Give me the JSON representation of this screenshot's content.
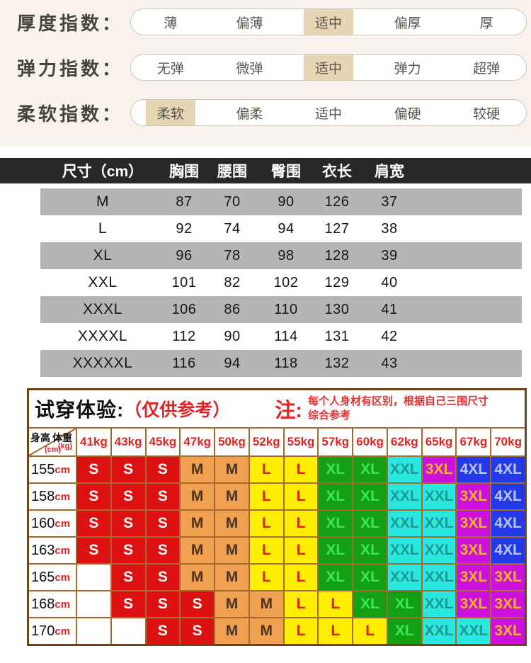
{
  "page_bg": "#f8f1ec",
  "indices": {
    "highlight_color": "#e5d5b2",
    "rows": [
      {
        "label": "厚度指数：",
        "options": [
          "薄",
          "偏薄",
          "适中",
          "偏厚",
          "厚"
        ],
        "selected": 2,
        "selected_label": "适中"
      },
      {
        "label": "弹力指数：",
        "options": [
          "无弹",
          "微弹",
          "适中",
          "弹力",
          "超弹"
        ],
        "selected": 2,
        "selected_label": "适中"
      },
      {
        "label": "柔软指数：",
        "options": [
          "柔软",
          "偏柔",
          "适中",
          "偏硬",
          "较硬"
        ],
        "selected": 0,
        "selected_label": "柔软"
      }
    ]
  },
  "size_table": {
    "header_bg": "#282828",
    "row_alt_bg": "#b5b5b5",
    "headers": [
      "尺寸（cm）",
      "胸围",
      "腰围",
      "臀围",
      "衣长",
      "肩宽"
    ],
    "rows": [
      {
        "size": "M",
        "values": [
          "87",
          "70",
          "90",
          "126",
          "37"
        ]
      },
      {
        "size": "L",
        "values": [
          "92",
          "74",
          "94",
          "127",
          "38"
        ]
      },
      {
        "size": "XL",
        "values": [
          "96",
          "78",
          "98",
          "128",
          "39"
        ]
      },
      {
        "size": "XXL",
        "values": [
          "101",
          "82",
          "102",
          "129",
          "40"
        ]
      },
      {
        "size": "XXXL",
        "values": [
          "106",
          "86",
          "110",
          "130",
          "41"
        ]
      },
      {
        "size": "XXXXL",
        "values": [
          "112",
          "90",
          "114",
          "131",
          "42"
        ]
      },
      {
        "size": "XXXXXL",
        "values": [
          "116",
          "94",
          "118",
          "132",
          "43"
        ]
      }
    ]
  },
  "fit_table": {
    "title": "试穿体验:",
    "title_sub": "（仅供参考）",
    "note_label": "注:",
    "note_line1": "每个人身材有区别，根据自己三围尺寸",
    "note_line2": "综合参考",
    "corner_top": "体重",
    "corner_top_unit": "(kg)",
    "corner_bottom": "身高",
    "corner_bottom_unit": "(cm)",
    "border_color": "#a8692c",
    "weights": [
      "41kg",
      "43kg",
      "45kg",
      "47kg",
      "50kg",
      "52kg",
      "55kg",
      "57kg",
      "60kg",
      "62kg",
      "65kg",
      "67kg",
      "70kg"
    ],
    "rows": [
      {
        "height": "155",
        "unit": "cm",
        "cells": [
          "S",
          "S",
          "S",
          "M",
          "M",
          "L",
          "L",
          "XL",
          "XL",
          "XXL",
          "3XL",
          "4XL",
          "4XL"
        ]
      },
      {
        "height": "158",
        "unit": "cm",
        "cells": [
          "S",
          "S",
          "S",
          "M",
          "M",
          "L",
          "L",
          "XL",
          "XL",
          "XXL",
          "XXL",
          "3XL",
          "4XL"
        ]
      },
      {
        "height": "160",
        "unit": "cm",
        "cells": [
          "S",
          "S",
          "S",
          "M",
          "M",
          "L",
          "L",
          "XL",
          "XL",
          "XXL",
          "XXL",
          "3XL",
          "4XL"
        ]
      },
      {
        "height": "163",
        "unit": "cm",
        "cells": [
          "S",
          "S",
          "S",
          "M",
          "M",
          "L",
          "L",
          "XL",
          "XL",
          "XXL",
          "XXL",
          "3XL",
          "4XL"
        ]
      },
      {
        "height": "165",
        "unit": "cm",
        "cells": [
          "",
          "S",
          "S",
          "M",
          "M",
          "L",
          "L",
          "XL",
          "XL",
          "XXL",
          "XXL",
          "3XL",
          "3XL"
        ]
      },
      {
        "height": "168",
        "unit": "cm",
        "cells": [
          "",
          "S",
          "S",
          "S",
          "M",
          "M",
          "L",
          "L",
          "XL",
          "XL",
          "XXL",
          "3XL",
          "3XL"
        ]
      },
      {
        "height": "170",
        "unit": "cm",
        "cells": [
          "",
          "",
          "S",
          "S",
          "M",
          "M",
          "L",
          "L",
          "L",
          "XL",
          "XXL",
          "XXL",
          "3XL"
        ]
      }
    ],
    "cell_styles": {
      "S": {
        "bg": "#dd1111",
        "fg": "#ffffff"
      },
      "M": {
        "bg": "#f0a050",
        "fg": "#4a3420"
      },
      "L": {
        "bg": "#ffee00",
        "fg": "#dd2200"
      },
      "XL": {
        "bg": "#14a014",
        "fg": "#3ce65a"
      },
      "XXL": {
        "bg": "#2ae8e0",
        "fg": "#1d9a90"
      },
      "3XL": {
        "bg": "#cc11dd",
        "fg": "#f5b329"
      },
      "4XL": {
        "bg": "#2338e6",
        "fg": "#b8c4ff"
      },
      "": {
        "bg": "#ffffff",
        "fg": "#000000"
      }
    }
  }
}
